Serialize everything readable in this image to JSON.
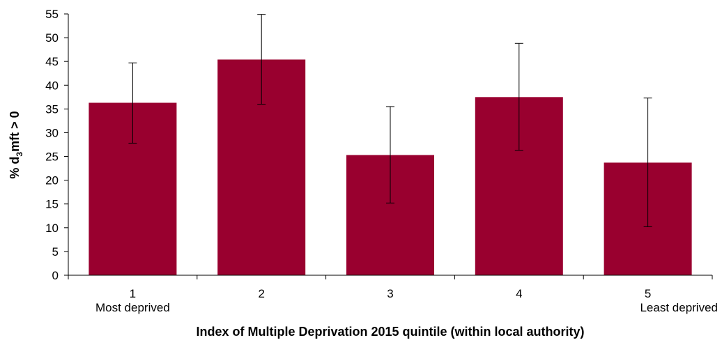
{
  "colors": {
    "bar": "#99002f",
    "error_bar": "#000000",
    "axis": "#000000",
    "background": "#ffffff"
  },
  "chart_data": {
    "type": "bar",
    "title": "",
    "xlabel": "Index of Multiple Deprivation 2015 quintile (within local authority)",
    "ylabel": {
      "prefix": "% d",
      "subscript": "3",
      "suffix": "mft > 0"
    },
    "ylim": [
      0,
      55
    ],
    "yticks": [
      0,
      5,
      10,
      15,
      20,
      25,
      30,
      35,
      40,
      45,
      50,
      55
    ],
    "grid": false,
    "categories": [
      "1",
      "2",
      "3",
      "4",
      "5"
    ],
    "category_sublabels": [
      "Most deprived",
      "",
      "",
      "",
      "Least deprived"
    ],
    "values": [
      36.3,
      45.4,
      25.3,
      37.5,
      23.7
    ],
    "error_low": [
      27.8,
      36.0,
      15.2,
      26.3,
      10.2
    ],
    "error_high": [
      44.7,
      54.9,
      35.5,
      48.8,
      37.3
    ]
  }
}
